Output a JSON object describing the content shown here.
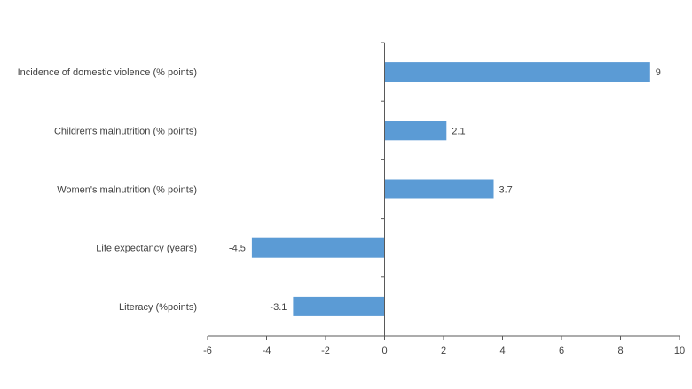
{
  "chart_data": {
    "type": "bar",
    "orientation": "horizontal",
    "categories": [
      "Incidence of domestic violence (% points)",
      "Children's malnutrition (% points)",
      "Women's malnutrition (% points)",
      "Life expectancy (years)",
      "Literacy (%points)"
    ],
    "values": [
      9,
      2.1,
      3.7,
      -4.5,
      -3.1
    ],
    "data_labels": [
      "9",
      "2.1",
      "3.7",
      "-4.5",
      "-3.1"
    ],
    "xlim": [
      -6,
      10
    ],
    "x_ticks": [
      -6,
      -4,
      -2,
      0,
      2,
      4,
      6,
      8,
      10
    ],
    "x_tick_labels": [
      "-6",
      "-4",
      "-2",
      "0",
      "2",
      "4",
      "6",
      "8",
      "10"
    ],
    "title": "",
    "xlabel": "",
    "ylabel": "",
    "grid": false,
    "legend": "none",
    "bar_color": "#5B9BD5",
    "axis_color": "#595959",
    "text_color": "#404040"
  }
}
